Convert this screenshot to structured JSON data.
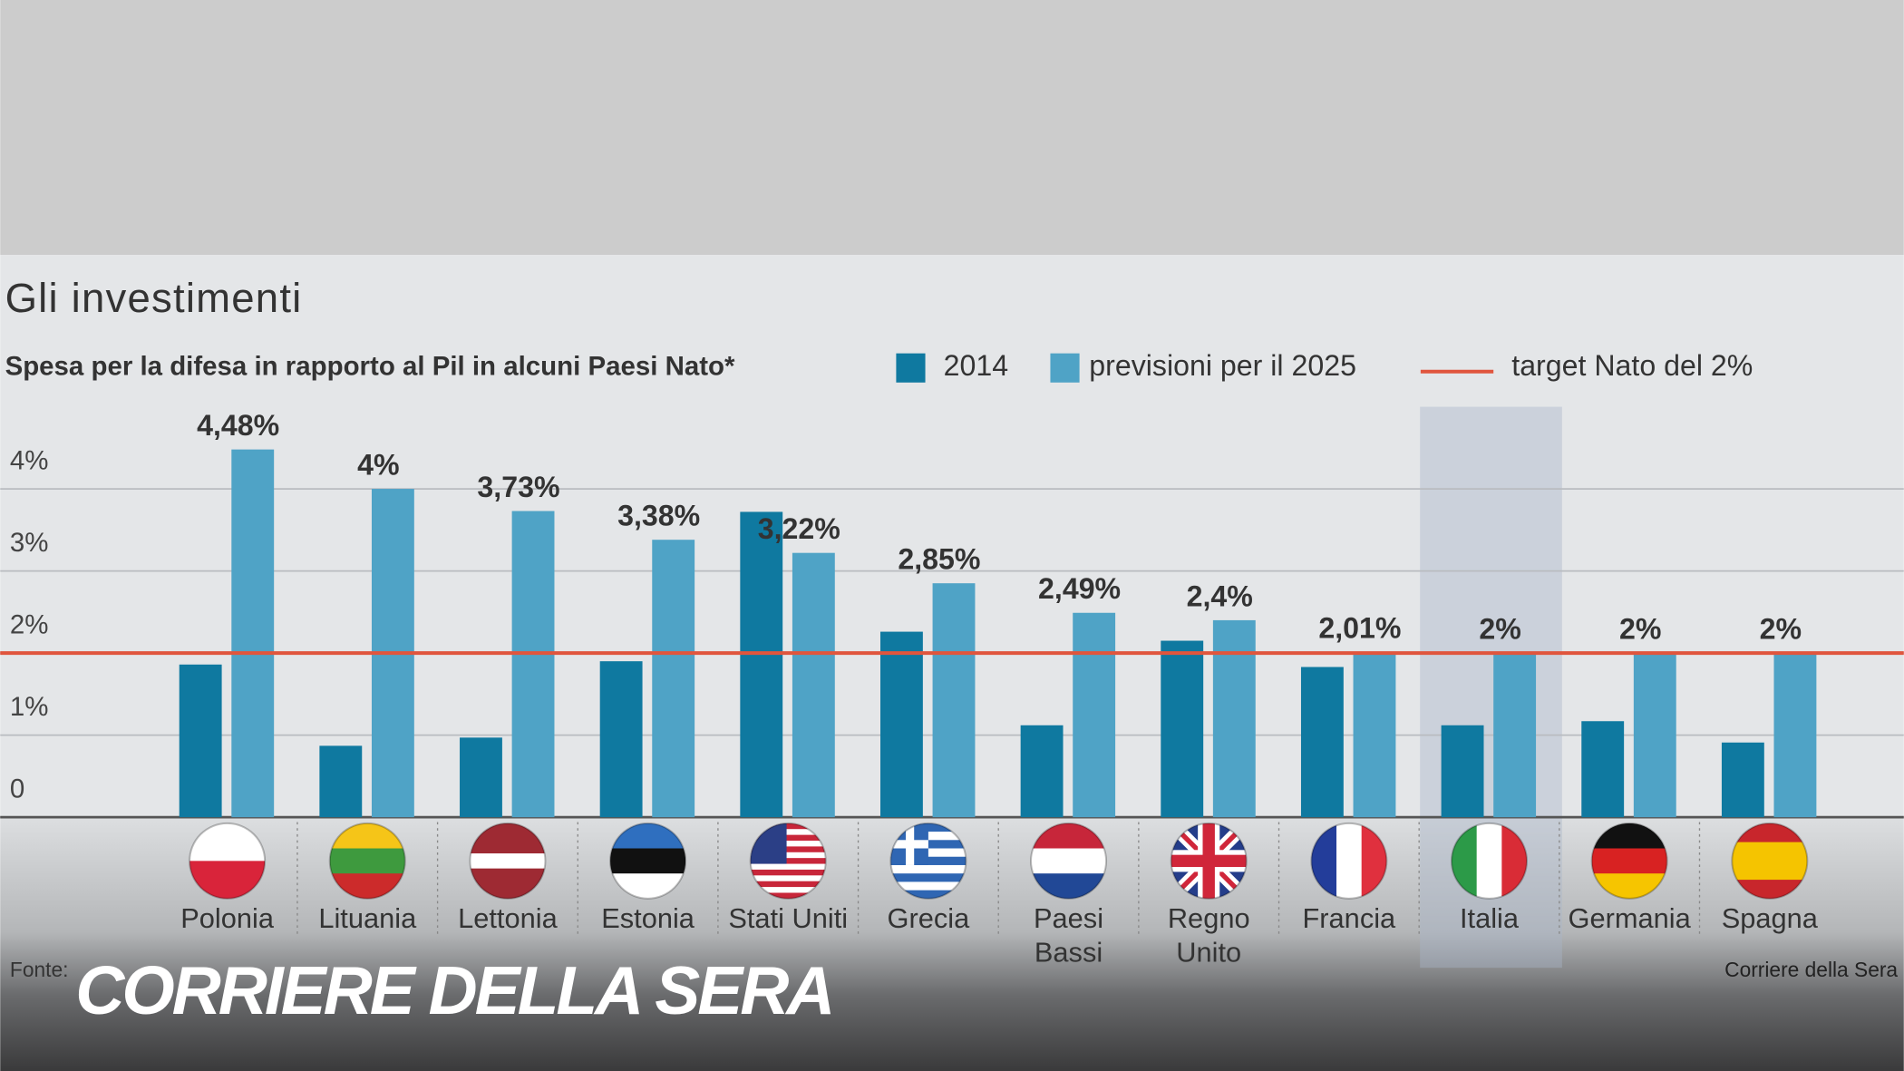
{
  "chart_data": {
    "type": "bar",
    "title": "Gli investimenti",
    "subtitle": "Spesa per la difesa in rapporto al Pil in alcuni Paesi Nato*",
    "categories": [
      "Polonia",
      "Lituania",
      "Lettonia",
      "Estonia",
      "Stati Uniti",
      "Grecia",
      "Paesi Bassi",
      "Regno Unito",
      "Francia",
      "Italia",
      "Germania",
      "Spagna"
    ],
    "series": [
      {
        "name": "2014",
        "color": "#0f79a0",
        "values": [
          1.86,
          0.87,
          0.97,
          1.9,
          3.72,
          2.26,
          1.12,
          2.15,
          1.83,
          1.12,
          1.17,
          0.91
        ]
      },
      {
        "name": "previsioni per il 2025",
        "color": "#4fa3c6",
        "values": [
          4.48,
          4,
          3.73,
          3.38,
          3.22,
          2.85,
          2.49,
          2.4,
          2.01,
          2,
          2,
          2
        ],
        "value_labels": [
          "4,48%",
          "4%",
          "3,73%",
          "3,38%",
          "3,22%",
          "2,85%",
          "2,49%",
          "2,4%",
          "2,01%",
          "2%",
          "2%",
          "2%"
        ]
      }
    ],
    "target": {
      "name": "target Nato del 2%",
      "value": 2,
      "color": "#e0553d"
    },
    "highlight": "Italia",
    "ylim": [
      0,
      5
    ],
    "yticks": [
      {
        "value": 0,
        "label": "0"
      },
      {
        "value": 1,
        "label": "1%"
      },
      {
        "value": 2,
        "label": "2%"
      },
      {
        "value": 3,
        "label": "3%"
      },
      {
        "value": 4,
        "label": "4%"
      }
    ],
    "grid": true,
    "source": "Fonte:",
    "credit": "Corriere della Sera",
    "logo": "CORRIERE DELLA SERA"
  }
}
